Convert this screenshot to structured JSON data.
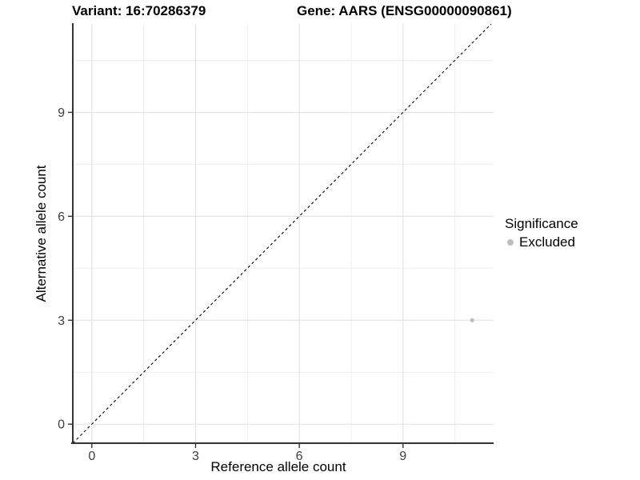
{
  "chart_data": {
    "type": "scatter",
    "title_left": "Variant: 16:70286379",
    "title_right": "Gene: AARS (ENSG00000090861)",
    "xlabel": "Reference allele count",
    "ylabel": "Alternative allele count",
    "x_ticks": [
      0,
      3,
      6,
      9
    ],
    "y_ticks": [
      0,
      3,
      6,
      9
    ],
    "grid_minor": [
      1.5,
      4.5,
      7.5,
      10.5
    ],
    "xlim": [
      -0.55,
      11.62
    ],
    "ylim": [
      -0.55,
      11.55
    ],
    "grid": "major+minor",
    "legend_position": "right",
    "reference_line": {
      "type": "identity y=x",
      "style": "dashed",
      "color": "#000000"
    },
    "series": [
      {
        "name": "Excluded",
        "color": "#bebebe",
        "points": [
          {
            "x": 11,
            "y": 3
          }
        ]
      }
    ],
    "legend": {
      "title": "Significance"
    },
    "colors": {
      "grid_major": "#e4e4e4",
      "grid_minor": "#efefef",
      "axis_line": "#333333",
      "tick_mark": "#333333",
      "tick_label": "#404040",
      "title_text": "#000000"
    }
  }
}
